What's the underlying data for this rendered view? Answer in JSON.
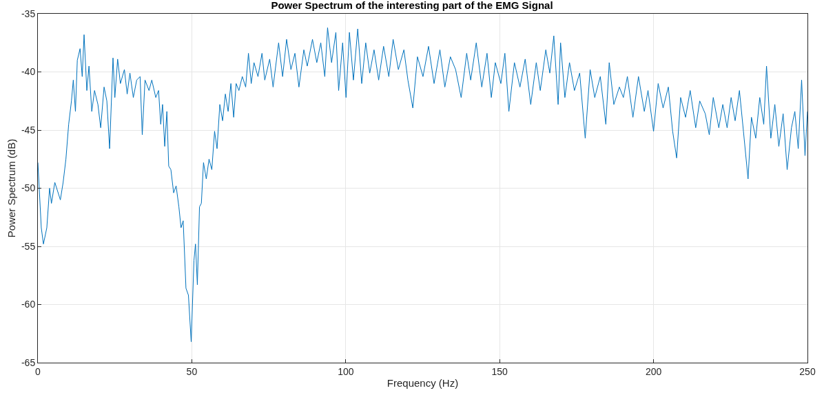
{
  "chart_data": {
    "type": "line",
    "title": "Power Spectrum of the interesting part of the EMG Signal",
    "xlabel": "Frequency (Hz)",
    "ylabel": "Power Spectrum (dB)",
    "xlim": [
      0,
      250
    ],
    "xticks": [
      0,
      50,
      100,
      150,
      200,
      250
    ],
    "ylim": [
      -65,
      -35
    ],
    "yticks": [
      -65,
      -60,
      -55,
      -50,
      -45,
      -40,
      -35
    ],
    "grid": true,
    "marker": "none",
    "line_style": "solid",
    "series": [
      {
        "color": "#0072bd",
        "x": [
          0,
          1.1,
          1.8,
          2.9,
          3.8,
          4.4,
          5.5,
          7.3,
          8.2,
          9.1,
          10,
          10.9,
          11.5,
          12.2,
          12.8,
          13.7,
          14.4,
          15,
          15.9,
          16.6,
          17.5,
          18.4,
          19.5,
          20.4,
          21.5,
          22.4,
          23.3,
          24.4,
          25,
          25.9,
          26.8,
          28.1,
          29,
          29.9,
          31,
          32.1,
          33.2,
          33.9,
          34.8,
          36.1,
          37,
          38.3,
          39.2,
          39.9,
          40.5,
          41.2,
          41.9,
          42.5,
          43.2,
          44.1,
          44.9,
          45.8,
          46.5,
          47.2,
          48.1,
          48.9,
          49.8,
          50.7,
          51.2,
          51.8,
          52.5,
          53.1,
          53.8,
          54.7,
          55.6,
          56.5,
          57.4,
          58.2,
          59.1,
          60,
          60.9,
          61.8,
          62.7,
          63.6,
          64.4,
          65.3,
          66.4,
          67.5,
          68.4,
          69.3,
          70.2,
          71.5,
          72.8,
          73.7,
          75.3,
          76.4,
          78.2,
          79.5,
          80.8,
          82.2,
          83.5,
          84.8,
          86.4,
          87.5,
          89.2,
          90.6,
          91.9,
          93.2,
          94.1,
          95.4,
          96.8,
          97.7,
          99,
          100.1,
          101.2,
          102.5,
          103.9,
          105.2,
          106.5,
          107.8,
          109.2,
          110.7,
          112.3,
          114,
          115.4,
          117.1,
          118.9,
          120.2,
          121.8,
          123.3,
          125.1,
          126.9,
          128.7,
          130.6,
          132.2,
          134,
          135.7,
          137.5,
          139.3,
          140.6,
          142.4,
          144.2,
          145.9,
          147.3,
          148.6,
          150.4,
          151.7,
          153,
          154.8,
          156.6,
          158.3,
          160.1,
          161.9,
          163.2,
          165,
          166.3,
          167.6,
          169,
          169.8,
          171.2,
          172.7,
          174.3,
          176,
          177.8,
          179.4,
          180.9,
          182.7,
          184.5,
          185.6,
          187.1,
          188.9,
          190.2,
          191.5,
          193.3,
          195.1,
          197,
          198.2,
          200,
          201.5,
          203.1,
          204.8,
          206.2,
          207.5,
          208.8,
          210.4,
          211.9,
          213.7,
          215,
          216.8,
          218.1,
          219.4,
          221.2,
          222.5,
          223.9,
          225.2,
          226.5,
          227.9,
          229.2,
          230.7,
          231.8,
          233.2,
          234.5,
          235.8,
          236.7,
          238.1,
          239.4,
          240.7,
          242.1,
          243.4,
          244.8,
          245.9,
          247,
          248.1,
          249.2,
          250
        ],
        "values": [
          -47.8,
          -53.4,
          -54.8,
          -53.4,
          -50,
          -51.3,
          -49.5,
          -51,
          -49.5,
          -47.5,
          -44.5,
          -42.5,
          -40.7,
          -43.4,
          -39,
          -38,
          -40.4,
          -36.8,
          -41.6,
          -39.5,
          -43.4,
          -41.6,
          -42.8,
          -44.8,
          -41.3,
          -42.5,
          -46.6,
          -38.8,
          -42.2,
          -38.9,
          -41,
          -39.8,
          -41.9,
          -40.1,
          -42.2,
          -40.7,
          -40.4,
          -45.4,
          -40.7,
          -41.6,
          -40.7,
          -42.2,
          -41.6,
          -44.5,
          -42.8,
          -46.4,
          -43.4,
          -48.1,
          -48.4,
          -50.4,
          -49.8,
          -51.6,
          -53.4,
          -52.8,
          -58.6,
          -59.2,
          -63.2,
          -56.2,
          -54.8,
          -58.3,
          -51.6,
          -51.3,
          -47.8,
          -49.2,
          -47.5,
          -48.4,
          -45.1,
          -46.6,
          -42.8,
          -44.2,
          -41.9,
          -43.4,
          -41,
          -43.9,
          -41,
          -41.6,
          -40.4,
          -41.3,
          -38.4,
          -41,
          -39.2,
          -40.4,
          -38.4,
          -40.7,
          -38.9,
          -41.3,
          -37.5,
          -40.4,
          -37.2,
          -39.8,
          -38.4,
          -41.3,
          -38.1,
          -39.5,
          -37.2,
          -39.2,
          -37.5,
          -40.4,
          -36.2,
          -39.2,
          -36.6,
          -41.6,
          -37.5,
          -42.2,
          -36.6,
          -40.7,
          -36.3,
          -41,
          -37.5,
          -40.1,
          -38.1,
          -40.7,
          -37.8,
          -40.4,
          -37.2,
          -39.8,
          -38.1,
          -40.7,
          -43.1,
          -38.7,
          -40.4,
          -37.8,
          -41,
          -38.1,
          -41.3,
          -38.7,
          -39.8,
          -42.2,
          -38.4,
          -40.7,
          -37.5,
          -41.3,
          -38.4,
          -42.2,
          -39.2,
          -41,
          -38.4,
          -43.4,
          -39.2,
          -41.3,
          -38.9,
          -42.8,
          -39.2,
          -41.6,
          -38.1,
          -40.1,
          -36.9,
          -42.8,
          -37.5,
          -42.2,
          -39.2,
          -41.6,
          -40.1,
          -45.7,
          -39.8,
          -42.2,
          -40.4,
          -44.5,
          -39.2,
          -42.8,
          -41.3,
          -42.2,
          -40.4,
          -43.9,
          -40.4,
          -43.4,
          -41.6,
          -45.1,
          -41,
          -43.1,
          -41.3,
          -45.1,
          -47.4,
          -42.2,
          -43.9,
          -41.6,
          -44.8,
          -42.5,
          -43.6,
          -45.4,
          -42.2,
          -44.8,
          -42.8,
          -44.8,
          -42.2,
          -44.2,
          -41.6,
          -45.1,
          -49.2,
          -43.9,
          -45.7,
          -42.2,
          -44.5,
          -39.5,
          -45.7,
          -42.8,
          -46.4,
          -43.6,
          -48.4,
          -44.8,
          -43.4,
          -46.6,
          -40.7,
          -47.2,
          -43.4
        ]
      }
    ]
  }
}
